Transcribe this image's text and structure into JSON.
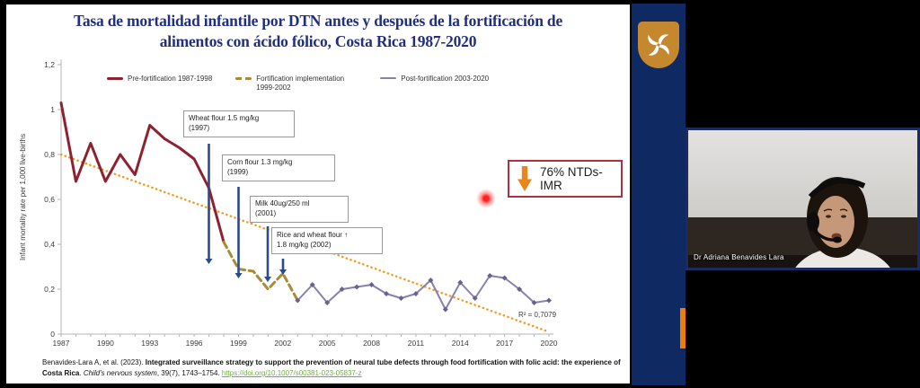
{
  "slide": {
    "title": "Tasa de mortalidad infantile por DTN antes y después de la fortificación de alimentos con ácido fólico, Costa Rica 1987-2020",
    "highlight_label": "76% NTDs-IMR",
    "citation": {
      "authors": "Benavides-Lara  A, et al. (2023). ",
      "article_title": "Integrated surveillance strategy to support the prevention of neural tube defects through food fortification with folic acid: the experience of Costa Rica",
      "separator": ". ",
      "journal": "Child's nervous system",
      "volume_pages": ", 39(7), 1743–1754. ",
      "doi_link": "https://doi.org/10.1007/s00381-023-05837-z"
    }
  },
  "chart_data": {
    "type": "line",
    "title": "",
    "xlabel": "",
    "ylabel": "Infant mortality rate per 1,000 live-births",
    "ylim": [
      0,
      1.2
    ],
    "xlim": [
      1987,
      2020
    ],
    "grid": false,
    "legend_position": "top",
    "y_ticks": [
      {
        "value": 0,
        "label": "0"
      },
      {
        "value": 0.2,
        "label": "0,2"
      },
      {
        "value": 0.4,
        "label": "0,4"
      },
      {
        "value": 0.6,
        "label": "0,6"
      },
      {
        "value": 0.8,
        "label": "0,8"
      },
      {
        "value": 1,
        "label": "1"
      },
      {
        "value": 1.2,
        "label": "1,2"
      }
    ],
    "x_ticks": [
      1987,
      1990,
      1993,
      1996,
      1999,
      2002,
      2005,
      2008,
      2011,
      2014,
      2017,
      2020
    ],
    "series": [
      {
        "name": "Pre-fortification 1987-1998",
        "color": "#8e2130",
        "style": "solid",
        "width": 3,
        "x": [
          1987,
          1988,
          1989,
          1990,
          1991,
          1992,
          1993,
          1994,
          1995,
          1996,
          1997,
          1998
        ],
        "values": [
          1.03,
          0.68,
          0.85,
          0.68,
          0.8,
          0.71,
          0.93,
          0.87,
          0.83,
          0.78,
          0.65,
          0.41
        ]
      },
      {
        "name": "Fortification implementation 1999-2002",
        "color": "#a88b35",
        "style": "dashed",
        "width": 3,
        "x": [
          1998,
          1999,
          2000,
          2001,
          2002,
          2003
        ],
        "values": [
          0.41,
          0.29,
          0.28,
          0.2,
          0.27,
          0.15
        ]
      },
      {
        "name": "Post-fortification 2003-2020",
        "color": "#8a80ad",
        "style": "solid",
        "width": 2,
        "markers": true,
        "marker_color": "#6b6190",
        "x": [
          2003,
          2004,
          2005,
          2006,
          2007,
          2008,
          2009,
          2010,
          2011,
          2012,
          2013,
          2014,
          2015,
          2016,
          2017,
          2018,
          2019,
          2020
        ],
        "values": [
          0.15,
          0.22,
          0.14,
          0.2,
          0.21,
          0.22,
          0.18,
          0.16,
          0.18,
          0.24,
          0.11,
          0.23,
          0.16,
          0.26,
          0.25,
          0.2,
          0.14,
          0.15
        ]
      }
    ],
    "trendline": {
      "color": "#f29b1d",
      "style": "dotted",
      "x": [
        1987,
        2020
      ],
      "values": [
        0.8,
        0.01
      ],
      "label": "R² = 0,7079"
    },
    "annotations": [
      {
        "line1": "Wheat flour 1.5 mg/kg",
        "line2": "(1997)"
      },
      {
        "line1": "Corn flour  1.3 mg/kg",
        "line2": "(1999)"
      },
      {
        "line1": "Milk 40ug/250 ml",
        "line2": "(2001)"
      },
      {
        "line1": "Rice  and wheat flour ↑",
        "line2": "1.8 mg/kg (2002)"
      }
    ],
    "arrow_color": "#2d4a8a"
  },
  "sidebar": {
    "logo_icon": "pinwheel-shield",
    "panel_color": "#0f2a63",
    "logo_gold": "#c5882e",
    "accent_bar_color": "#ef7d00"
  },
  "webcam": {
    "name_label": "Dr Adriana Benavides Lara"
  },
  "colors": {
    "title": "#212f7c",
    "highlight_border": "#a83240",
    "highlight_arrow": "#e8851c",
    "link_green": "#6fae3e",
    "laser": "#ff2a2a"
  }
}
